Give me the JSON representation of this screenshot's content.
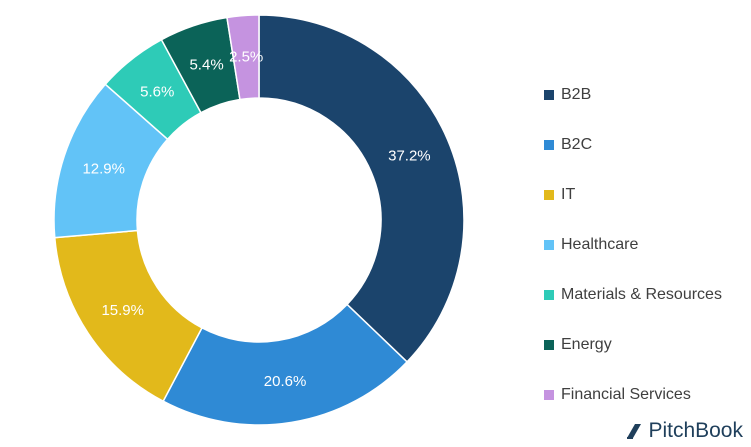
{
  "chart_data": {
    "type": "pie",
    "donut": true,
    "categories": [
      "B2B",
      "B2C",
      "IT",
      "Healthcare",
      "Materials & Resources",
      "Energy",
      "Financial Services"
    ],
    "values": [
      37.2,
      20.6,
      15.9,
      12.9,
      5.6,
      5.4,
      2.5
    ],
    "labels": [
      "37.2%",
      "20.6%",
      "15.9%",
      "12.9%",
      "5.6%",
      "5.4%",
      "2.5%"
    ],
    "colors": [
      "#1b446c",
      "#2f8ad5",
      "#e2b91b",
      "#62c3f7",
      "#2ecbb7",
      "#0b6358",
      "#c593e0"
    ],
    "label_colors": [
      "#ffffff",
      "#ffffff",
      "#ffffff",
      "#ffffff",
      "#ffffff",
      "#ffffff",
      "#ffffff"
    ],
    "legend_position": "right",
    "title": ""
  },
  "watermark": {
    "text": "PitchBook",
    "icon": "pitchbook-logo-icon"
  }
}
